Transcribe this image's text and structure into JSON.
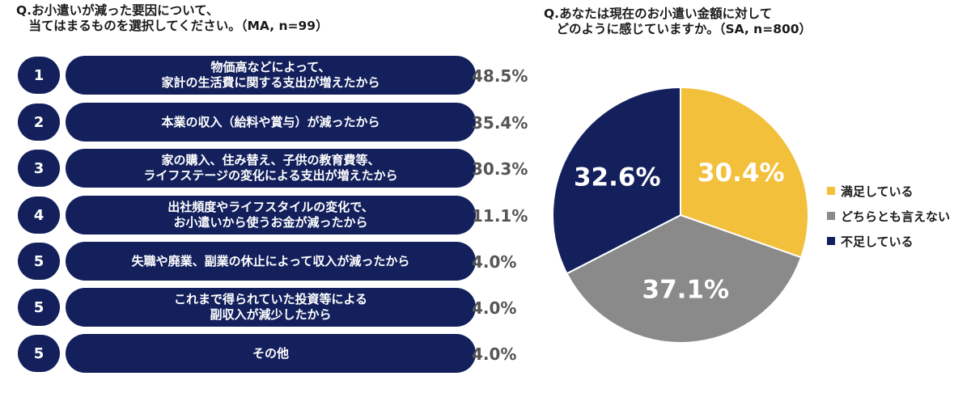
{
  "left_question": {
    "title": "Q.お小遣いが減った要因について、\n　当てはまるものを選択してください。（MA, n=99）"
  },
  "right_question": {
    "title": "Q.あなたは現在のお小遣い金額に対して\n　どのように感じていますか。（SA, n=800）"
  },
  "chart_data": [
    {
      "type": "bar",
      "title": "Q.お小遣いが減った要因について、当てはまるものを選択してください。（MA, n=99）",
      "rows": [
        {
          "rank": "1",
          "label": "物価高などによって、\n家計の生活費に関する支出が増えたから",
          "value": 48.5,
          "value_label": "48.5%"
        },
        {
          "rank": "2",
          "label": "本業の収入（給料や賞与）が減ったから",
          "value": 35.4,
          "value_label": "35.4%"
        },
        {
          "rank": "3",
          "label": "家の購入、住み替え、子供の教育費等、\nライフステージの変化による支出が増えたから",
          "value": 30.3,
          "value_label": "30.3%"
        },
        {
          "rank": "4",
          "label": "出社頻度やライフスタイルの変化で、\nお小遣いから使うお金が減ったから",
          "value": 11.1,
          "value_label": "11.1%"
        },
        {
          "rank": "5",
          "label": "失職や廃業、副業の休止によって収入が減ったから",
          "value": 4.0,
          "value_label": "4.0%"
        },
        {
          "rank": "5",
          "label": "これまで得られていた投資等による\n副収入が減少したから",
          "value": 4.0,
          "value_label": "4.0%"
        },
        {
          "rank": "5",
          "label": "その他",
          "value": 4.0,
          "value_label": "4.0%"
        }
      ]
    },
    {
      "type": "pie",
      "title": "Q.あなたは現在のお小遣い金額に対してどのように感じていますか。（SA, n=800）",
      "slices": [
        {
          "name": "満足している",
          "value": 30.4,
          "value_label": "30.4%",
          "color": "#f2c03b"
        },
        {
          "name": "どちらとも言えない",
          "value": 37.1,
          "value_label": "37.1%",
          "color": "#8a8a8a"
        },
        {
          "name": "不足している",
          "value": 32.6,
          "value_label": "32.6%",
          "color": "#13205c"
        }
      ],
      "legend_position": "right"
    }
  ]
}
